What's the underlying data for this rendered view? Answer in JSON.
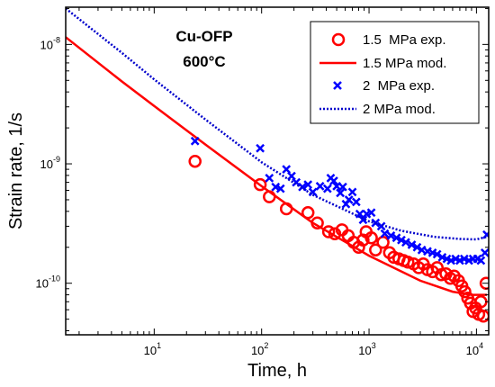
{
  "chart_data": {
    "type": "scatter",
    "xlabel": "Time, h",
    "ylabel": "Strain rate, 1/s",
    "x_scale": "log",
    "y_scale": "log",
    "xlim": [
      1.5,
      13000
    ],
    "ylim": [
      3.7e-11,
      2.05e-08
    ],
    "x_ticks": [
      {
        "value": 10,
        "base": "10",
        "exp": "1"
      },
      {
        "value": 100,
        "base": "10",
        "exp": "2"
      },
      {
        "value": 1000,
        "base": "10",
        "exp": "3"
      },
      {
        "value": 10000,
        "base": "10",
        "exp": "4"
      }
    ],
    "y_ticks": [
      {
        "value": 1e-10,
        "base": "10",
        "exp": "-10"
      },
      {
        "value": 1e-09,
        "base": "10",
        "exp": "-9"
      },
      {
        "value": 1e-08,
        "base": "10",
        "exp": "-8"
      }
    ],
    "grid": false,
    "legend_position": "top-right",
    "annotations": [
      "Cu-OFP",
      "600°C"
    ],
    "series": [
      {
        "name": "1.5  MPa exp.",
        "kind": "marker",
        "marker": "circle",
        "color": "#ff0000",
        "points": [
          [
            24,
            1.05e-09
          ],
          [
            97,
            6.7e-10
          ],
          [
            118,
            5.3e-10
          ],
          [
            170,
            4.2e-10
          ],
          [
            270,
            3.9e-10
          ],
          [
            330,
            3.2e-10
          ],
          [
            420,
            2.7e-10
          ],
          [
            480,
            2.6e-10
          ],
          [
            560,
            2.8e-10
          ],
          [
            640,
            2.5e-10
          ],
          [
            720,
            2.2e-10
          ],
          [
            800,
            2e-10
          ],
          [
            880,
            2.3e-10
          ],
          [
            940,
            2.7e-10
          ],
          [
            1050,
            2.4e-10
          ],
          [
            1150,
            1.9e-10
          ],
          [
            1350,
            2.2e-10
          ],
          [
            1550,
            1.8e-10
          ],
          [
            1700,
            1.65e-10
          ],
          [
            1900,
            1.6e-10
          ],
          [
            2100,
            1.55e-10
          ],
          [
            2300,
            1.5e-10
          ],
          [
            2600,
            1.45e-10
          ],
          [
            2900,
            1.35e-10
          ],
          [
            3200,
            1.45e-10
          ],
          [
            3500,
            1.3e-10
          ],
          [
            3900,
            1.25e-10
          ],
          [
            4300,
            1.35e-10
          ],
          [
            4700,
            1.18e-10
          ],
          [
            5200,
            1.2e-10
          ],
          [
            5700,
            1.1e-10
          ],
          [
            6200,
            1.15e-10
          ],
          [
            6800,
            1.05e-10
          ],
          [
            7300,
            9.5e-11
          ],
          [
            7800,
            8.5e-11
          ],
          [
            8300,
            7.5e-11
          ],
          [
            8800,
            6.8e-11
          ],
          [
            9300,
            5.8e-11
          ],
          [
            9800,
            6.2e-11
          ],
          [
            10500,
            5.5e-11
          ],
          [
            11000,
            7e-11
          ],
          [
            11600,
            5.3e-11
          ],
          [
            12300,
            1e-10
          ]
        ]
      },
      {
        "name": "1.5 MPa mod.",
        "kind": "line",
        "color": "#ff0000",
        "points": [
          [
            1.5,
            1.15e-08
          ],
          [
            5,
            4.9e-09
          ],
          [
            10,
            3.05e-09
          ],
          [
            30,
            1.45e-09
          ],
          [
            100,
            6.5e-10
          ],
          [
            300,
            3.2e-10
          ],
          [
            1000,
            1.7e-10
          ],
          [
            3000,
            1.05e-10
          ],
          [
            6000,
            8.5e-11
          ],
          [
            9000,
            8e-11
          ],
          [
            12500,
            8e-11
          ]
        ]
      },
      {
        "name": "2  MPa exp.",
        "kind": "marker",
        "marker": "cross",
        "color": "#0000ff",
        "points": [
          [
            24,
            1.55e-09
          ],
          [
            97,
            1.35e-09
          ],
          [
            118,
            7.6e-10
          ],
          [
            135,
            6.4e-10
          ],
          [
            150,
            6.2e-10
          ],
          [
            170,
            9e-10
          ],
          [
            190,
            7.9e-10
          ],
          [
            210,
            7e-10
          ],
          [
            240,
            6.4e-10
          ],
          [
            270,
            6.7e-10
          ],
          [
            300,
            5.8e-10
          ],
          [
            350,
            6.5e-10
          ],
          [
            410,
            6.2e-10
          ],
          [
            440,
            7.6e-10
          ],
          [
            470,
            7.2e-10
          ],
          [
            500,
            6.5e-10
          ],
          [
            540,
            5.7e-10
          ],
          [
            570,
            6.4e-10
          ],
          [
            610,
            4.6e-10
          ],
          [
            650,
            5e-10
          ],
          [
            700,
            5.8e-10
          ],
          [
            760,
            4.8e-10
          ],
          [
            820,
            3.8e-10
          ],
          [
            880,
            3.4e-10
          ],
          [
            950,
            3.8e-10
          ],
          [
            1050,
            3.9e-10
          ],
          [
            1150,
            3.2e-10
          ],
          [
            1300,
            3e-10
          ],
          [
            1400,
            2.6e-10
          ],
          [
            1600,
            2.5e-10
          ],
          [
            1800,
            2.4e-10
          ],
          [
            2000,
            2.3e-10
          ],
          [
            2200,
            2.2e-10
          ],
          [
            2500,
            2.1e-10
          ],
          [
            2800,
            2e-10
          ],
          [
            3100,
            1.9e-10
          ],
          [
            3500,
            1.85e-10
          ],
          [
            3900,
            1.8e-10
          ],
          [
            4300,
            1.75e-10
          ],
          [
            4800,
            1.65e-10
          ],
          [
            5300,
            1.6e-10
          ],
          [
            5800,
            1.55e-10
          ],
          [
            6400,
            1.6e-10
          ],
          [
            7000,
            1.55e-10
          ],
          [
            7700,
            1.6e-10
          ],
          [
            8500,
            1.55e-10
          ],
          [
            9300,
            1.6e-10
          ],
          [
            10200,
            1.6e-10
          ],
          [
            11000,
            1.55e-10
          ],
          [
            12000,
            1.8e-10
          ],
          [
            12500,
            2.55e-10
          ]
        ]
      },
      {
        "name": "2 MPa mod.",
        "kind": "dotted-line",
        "color": "#0000cc",
        "points": [
          [
            1.5,
            2e-08
          ],
          [
            5,
            8.5e-09
          ],
          [
            10,
            5.1e-09
          ],
          [
            30,
            2.35e-09
          ],
          [
            100,
            1.03e-09
          ],
          [
            300,
            5.5e-10
          ],
          [
            1000,
            3.3e-10
          ],
          [
            2000,
            2.75e-10
          ],
          [
            4000,
            2.45e-10
          ],
          [
            7000,
            2.35e-10
          ],
          [
            10000,
            2.33e-10
          ],
          [
            12500,
            2.45e-10
          ]
        ]
      }
    ]
  }
}
